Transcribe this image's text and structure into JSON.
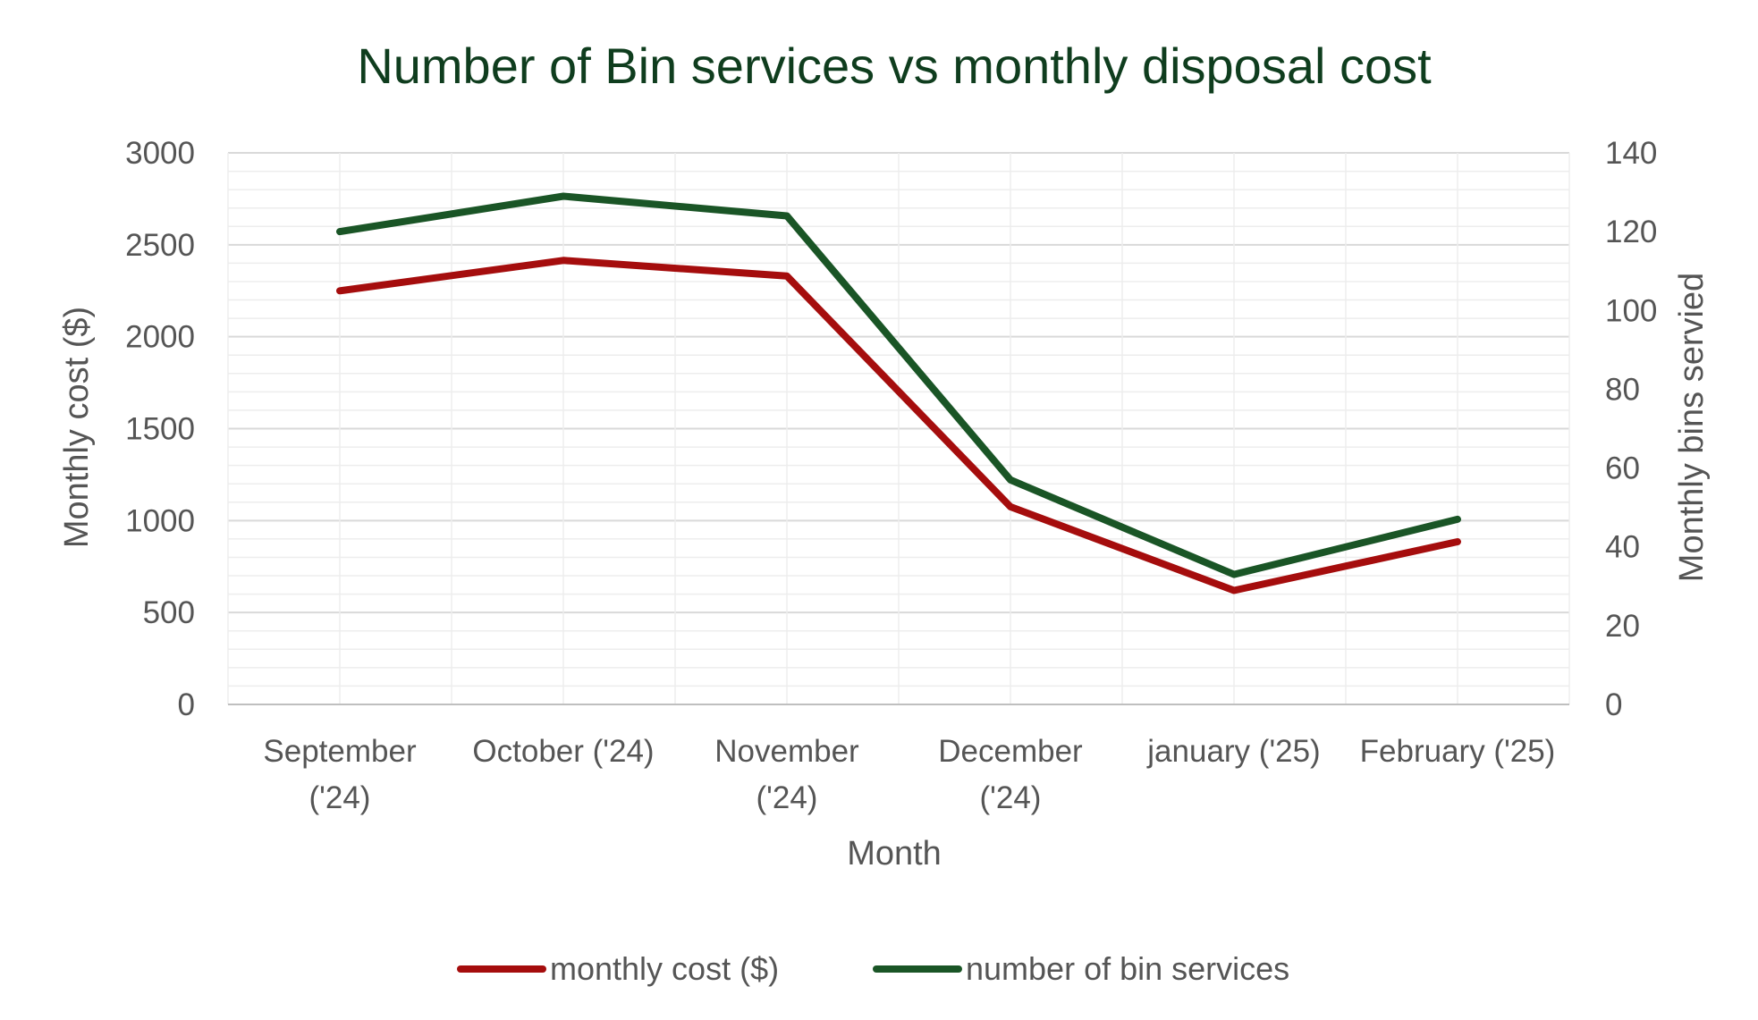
{
  "chart_data": {
    "type": "line",
    "title": "Number of Bin services vs monthly disposal cost",
    "xlabel": "Month",
    "ylabel": "Monthly cost ($)",
    "y2label": "Monthly bins servied",
    "categories": [
      "September ('24)",
      "October ('24)",
      "November ('24)",
      "December ('24)",
      "january ('25)",
      "February ('25)"
    ],
    "category_labels": [
      [
        "September",
        "('24)"
      ],
      [
        "October ('24)"
      ],
      [
        "November",
        "('24)"
      ],
      [
        "December",
        "('24)"
      ],
      [
        "january ('25)"
      ],
      [
        "February ('25)"
      ]
    ],
    "ylim": [
      0,
      3000
    ],
    "y2lim": [
      0,
      140
    ],
    "yticks": [
      0,
      500,
      1000,
      1500,
      2000,
      2500,
      3000
    ],
    "y2ticks": [
      0,
      20,
      40,
      60,
      80,
      100,
      120,
      140
    ],
    "grid": true,
    "legend_position": "bottom",
    "series": [
      {
        "name": "monthly cost ($)",
        "axis": "left",
        "color": "#a50d0d",
        "values": [
          2250,
          2415,
          2330,
          1075,
          620,
          885
        ]
      },
      {
        "name": "number of bin services",
        "axis": "right",
        "color": "#1a5526",
        "values": [
          120,
          129,
          124,
          57,
          33,
          47
        ]
      }
    ]
  },
  "colors": {
    "title": "#0f3d1e",
    "text": "#555555",
    "grid": "#d9d9d9"
  }
}
